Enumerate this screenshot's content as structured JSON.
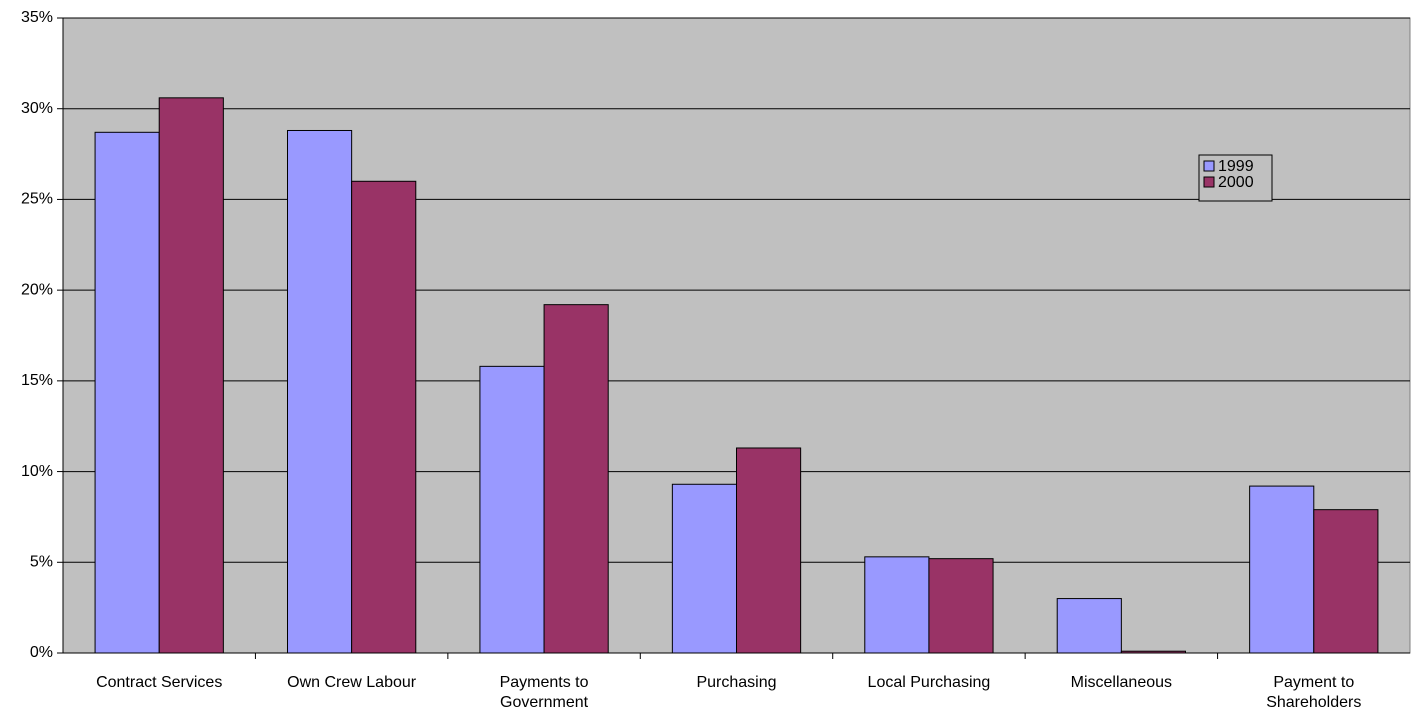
{
  "chart_data": {
    "type": "bar",
    "categories": [
      "Contract Services",
      "Own Crew Labour",
      "Payments to Government",
      "Purchasing",
      "Local Purchasing",
      "Miscellaneous",
      "Payment to Shareholders"
    ],
    "series": [
      {
        "name": "1999",
        "color": "#9999ff",
        "values": [
          28.7,
          28.8,
          15.8,
          9.3,
          5.3,
          3.0,
          9.2
        ]
      },
      {
        "name": "2000",
        "color": "#993366",
        "values": [
          30.6,
          26.0,
          19.2,
          11.3,
          5.2,
          0.1,
          7.9
        ]
      }
    ],
    "ylim": [
      0,
      35
    ],
    "yticks": [
      {
        "value": 0,
        "label": "0%"
      },
      {
        "value": 5,
        "label": "5%"
      },
      {
        "value": 10,
        "label": "10%"
      },
      {
        "value": 15,
        "label": "15%"
      },
      {
        "value": 20,
        "label": "20%"
      },
      {
        "value": 25,
        "label": "25%"
      },
      {
        "value": 30,
        "label": "30%"
      },
      {
        "value": 35,
        "label": "35%"
      }
    ],
    "grid": true,
    "plot_background": "#c0c0c0",
    "legend": "upper right"
  }
}
